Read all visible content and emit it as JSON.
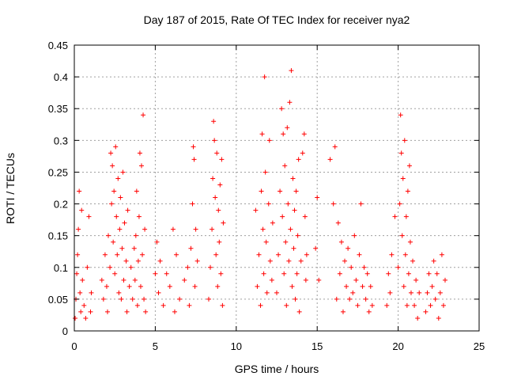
{
  "chart_data": {
    "type": "scatter",
    "title": "Day 187 of 2015, Rate Of TEC Index for receiver nya2",
    "xlabel": "GPS time / hours",
    "ylabel": "ROTI / TECUs",
    "xlim": [
      0,
      25
    ],
    "ylim": [
      0,
      0.45
    ],
    "x_ticks": [
      0,
      5,
      10,
      15,
      20,
      25
    ],
    "y_ticks": [
      0,
      0.05,
      0.1,
      0.15,
      0.2,
      0.25,
      0.3,
      0.35,
      0.4,
      0.45
    ],
    "grid": true,
    "legend": "none",
    "marker": "plus",
    "colors": {
      "series": "#ff0000",
      "grid": "#a0a0a0",
      "axes": "#000000"
    },
    "series": [
      {
        "points": [
          [
            0.05,
            0.02
          ],
          [
            0.1,
            0.05
          ],
          [
            0.15,
            0.09
          ],
          [
            0.2,
            0.12
          ],
          [
            0.25,
            0.16
          ],
          [
            0.3,
            0.22
          ],
          [
            0.35,
            0.06
          ],
          [
            0.4,
            0.03
          ],
          [
            0.45,
            0.19
          ],
          [
            0.5,
            0.08
          ],
          [
            0.6,
            0.04
          ],
          [
            0.7,
            0.02
          ],
          [
            0.8,
            0.1
          ],
          [
            0.9,
            0.18
          ],
          [
            1.0,
            0.03
          ],
          [
            1.05,
            0.06
          ],
          [
            1.7,
            0.08
          ],
          [
            1.8,
            0.05
          ],
          [
            1.9,
            0.12
          ],
          [
            2.0,
            0.07
          ],
          [
            2.05,
            0.03
          ],
          [
            2.1,
            0.15
          ],
          [
            2.2,
            0.1
          ],
          [
            2.25,
            0.28
          ],
          [
            2.3,
            0.2
          ],
          [
            2.35,
            0.26
          ],
          [
            2.4,
            0.14
          ],
          [
            2.45,
            0.22
          ],
          [
            2.5,
            0.09
          ],
          [
            2.55,
            0.29
          ],
          [
            2.6,
            0.18
          ],
          [
            2.65,
            0.12
          ],
          [
            2.7,
            0.24
          ],
          [
            2.75,
            0.06
          ],
          [
            2.8,
            0.16
          ],
          [
            2.85,
            0.21
          ],
          [
            2.9,
            0.05
          ],
          [
            2.95,
            0.13
          ],
          [
            3.0,
            0.25
          ],
          [
            3.05,
            0.08
          ],
          [
            3.1,
            0.17
          ],
          [
            3.2,
            0.11
          ],
          [
            3.25,
            0.03
          ],
          [
            3.3,
            0.19
          ],
          [
            3.4,
            0.07
          ],
          [
            3.5,
            0.1
          ],
          [
            3.6,
            0.05
          ],
          [
            3.7,
            0.13
          ],
          [
            3.75,
            0.08
          ],
          [
            3.8,
            0.15
          ],
          [
            3.85,
            0.22
          ],
          [
            3.9,
            0.04
          ],
          [
            3.95,
            0.11
          ],
          [
            4.0,
            0.18
          ],
          [
            4.05,
            0.28
          ],
          [
            4.1,
            0.07
          ],
          [
            4.15,
            0.26
          ],
          [
            4.2,
            0.12
          ],
          [
            4.25,
            0.34
          ],
          [
            4.3,
            0.05
          ],
          [
            4.35,
            0.16
          ],
          [
            4.4,
            0.03
          ],
          [
            5.0,
            0.09
          ],
          [
            5.1,
            0.14
          ],
          [
            5.2,
            0.06
          ],
          [
            5.3,
            0.11
          ],
          [
            5.5,
            0.04
          ],
          [
            5.7,
            0.09
          ],
          [
            5.9,
            0.07
          ],
          [
            6.1,
            0.16
          ],
          [
            6.2,
            0.03
          ],
          [
            6.3,
            0.12
          ],
          [
            6.5,
            0.05
          ],
          [
            6.8,
            0.08
          ],
          [
            7.0,
            0.1
          ],
          [
            7.1,
            0.04
          ],
          [
            7.2,
            0.13
          ],
          [
            7.3,
            0.2
          ],
          [
            7.35,
            0.29
          ],
          [
            7.4,
            0.27
          ],
          [
            7.45,
            0.07
          ],
          [
            7.5,
            0.16
          ],
          [
            7.6,
            0.11
          ],
          [
            8.3,
            0.05
          ],
          [
            8.4,
            0.1
          ],
          [
            8.5,
            0.16
          ],
          [
            8.55,
            0.24
          ],
          [
            8.6,
            0.33
          ],
          [
            8.65,
            0.3
          ],
          [
            8.7,
            0.21
          ],
          [
            8.75,
            0.12
          ],
          [
            8.8,
            0.28
          ],
          [
            8.85,
            0.07
          ],
          [
            8.9,
            0.19
          ],
          [
            8.95,
            0.14
          ],
          [
            9.0,
            0.23
          ],
          [
            9.05,
            0.09
          ],
          [
            9.1,
            0.27
          ],
          [
            9.15,
            0.04
          ],
          [
            9.2,
            0.17
          ],
          [
            11.2,
            0.19
          ],
          [
            11.3,
            0.07
          ],
          [
            11.4,
            0.12
          ],
          [
            11.5,
            0.04
          ],
          [
            11.55,
            0.22
          ],
          [
            11.6,
            0.31
          ],
          [
            11.65,
            0.16
          ],
          [
            11.7,
            0.09
          ],
          [
            11.75,
            0.4
          ],
          [
            11.8,
            0.25
          ],
          [
            11.85,
            0.14
          ],
          [
            11.9,
            0.06
          ],
          [
            12.0,
            0.2
          ],
          [
            12.05,
            0.3
          ],
          [
            12.1,
            0.11
          ],
          [
            12.2,
            0.08
          ],
          [
            12.25,
            0.17
          ],
          [
            12.5,
            0.06
          ],
          [
            12.6,
            0.12
          ],
          [
            12.7,
            0.22
          ],
          [
            12.8,
            0.35
          ],
          [
            12.85,
            0.18
          ],
          [
            12.9,
            0.31
          ],
          [
            12.95,
            0.09
          ],
          [
            13.0,
            0.26
          ],
          [
            13.05,
            0.14
          ],
          [
            13.1,
            0.04
          ],
          [
            13.15,
            0.32
          ],
          [
            13.2,
            0.2
          ],
          [
            13.25,
            0.11
          ],
          [
            13.3,
            0.36
          ],
          [
            13.35,
            0.16
          ],
          [
            13.4,
            0.41
          ],
          [
            13.45,
            0.07
          ],
          [
            13.5,
            0.24
          ],
          [
            13.55,
            0.13
          ],
          [
            13.6,
            0.19
          ],
          [
            13.65,
            0.05
          ],
          [
            13.7,
            0.22
          ],
          [
            13.75,
            0.09
          ],
          [
            13.8,
            0.15
          ],
          [
            13.85,
            0.27
          ],
          [
            13.9,
            0.03
          ],
          [
            14.0,
            0.11
          ],
          [
            14.1,
            0.28
          ],
          [
            14.2,
            0.31
          ],
          [
            14.25,
            0.18
          ],
          [
            14.3,
            0.08
          ],
          [
            14.35,
            0.12
          ],
          [
            14.9,
            0.13
          ],
          [
            15.0,
            0.21
          ],
          [
            15.1,
            0.08
          ],
          [
            15.8,
            0.27
          ],
          [
            16.0,
            0.2
          ],
          [
            16.1,
            0.29
          ],
          [
            16.2,
            0.05
          ],
          [
            16.3,
            0.17
          ],
          [
            16.4,
            0.09
          ],
          [
            16.5,
            0.14
          ],
          [
            16.6,
            0.03
          ],
          [
            16.7,
            0.11
          ],
          [
            16.8,
            0.07
          ],
          [
            16.9,
            0.13
          ],
          [
            17.0,
            0.05
          ],
          [
            17.1,
            0.1
          ],
          [
            17.2,
            0.06
          ],
          [
            17.3,
            0.15
          ],
          [
            17.4,
            0.08
          ],
          [
            17.5,
            0.04
          ],
          [
            17.6,
            0.12
          ],
          [
            17.7,
            0.2
          ],
          [
            17.8,
            0.07
          ],
          [
            17.9,
            0.1
          ],
          [
            18.0,
            0.05
          ],
          [
            18.1,
            0.09
          ],
          [
            18.2,
            0.03
          ],
          [
            18.3,
            0.07
          ],
          [
            18.4,
            0.04
          ],
          [
            19.3,
            0.04
          ],
          [
            19.4,
            0.09
          ],
          [
            19.5,
            0.06
          ],
          [
            19.6,
            0.12
          ],
          [
            19.8,
            0.18
          ],
          [
            20.0,
            0.1
          ],
          [
            20.1,
            0.2
          ],
          [
            20.15,
            0.34
          ],
          [
            20.2,
            0.28
          ],
          [
            20.25,
            0.15
          ],
          [
            20.3,
            0.24
          ],
          [
            20.35,
            0.07
          ],
          [
            20.4,
            0.3
          ],
          [
            20.45,
            0.12
          ],
          [
            20.5,
            0.18
          ],
          [
            20.55,
            0.04
          ],
          [
            20.6,
            0.22
          ],
          [
            20.65,
            0.09
          ],
          [
            20.7,
            0.26
          ],
          [
            20.75,
            0.14
          ],
          [
            20.8,
            0.06
          ],
          [
            20.9,
            0.11
          ],
          [
            21.0,
            0.04
          ],
          [
            21.1,
            0.08
          ],
          [
            21.2,
            0.02
          ],
          [
            21.3,
            0.06
          ],
          [
            21.7,
            0.03
          ],
          [
            21.8,
            0.06
          ],
          [
            21.9,
            0.09
          ],
          [
            22.0,
            0.04
          ],
          [
            22.1,
            0.07
          ],
          [
            22.2,
            0.11
          ],
          [
            22.3,
            0.05
          ],
          [
            22.4,
            0.09
          ],
          [
            22.5,
            0.02
          ],
          [
            22.6,
            0.06
          ],
          [
            22.7,
            0.12
          ],
          [
            22.8,
            0.04
          ],
          [
            22.9,
            0.08
          ]
        ]
      }
    ]
  }
}
